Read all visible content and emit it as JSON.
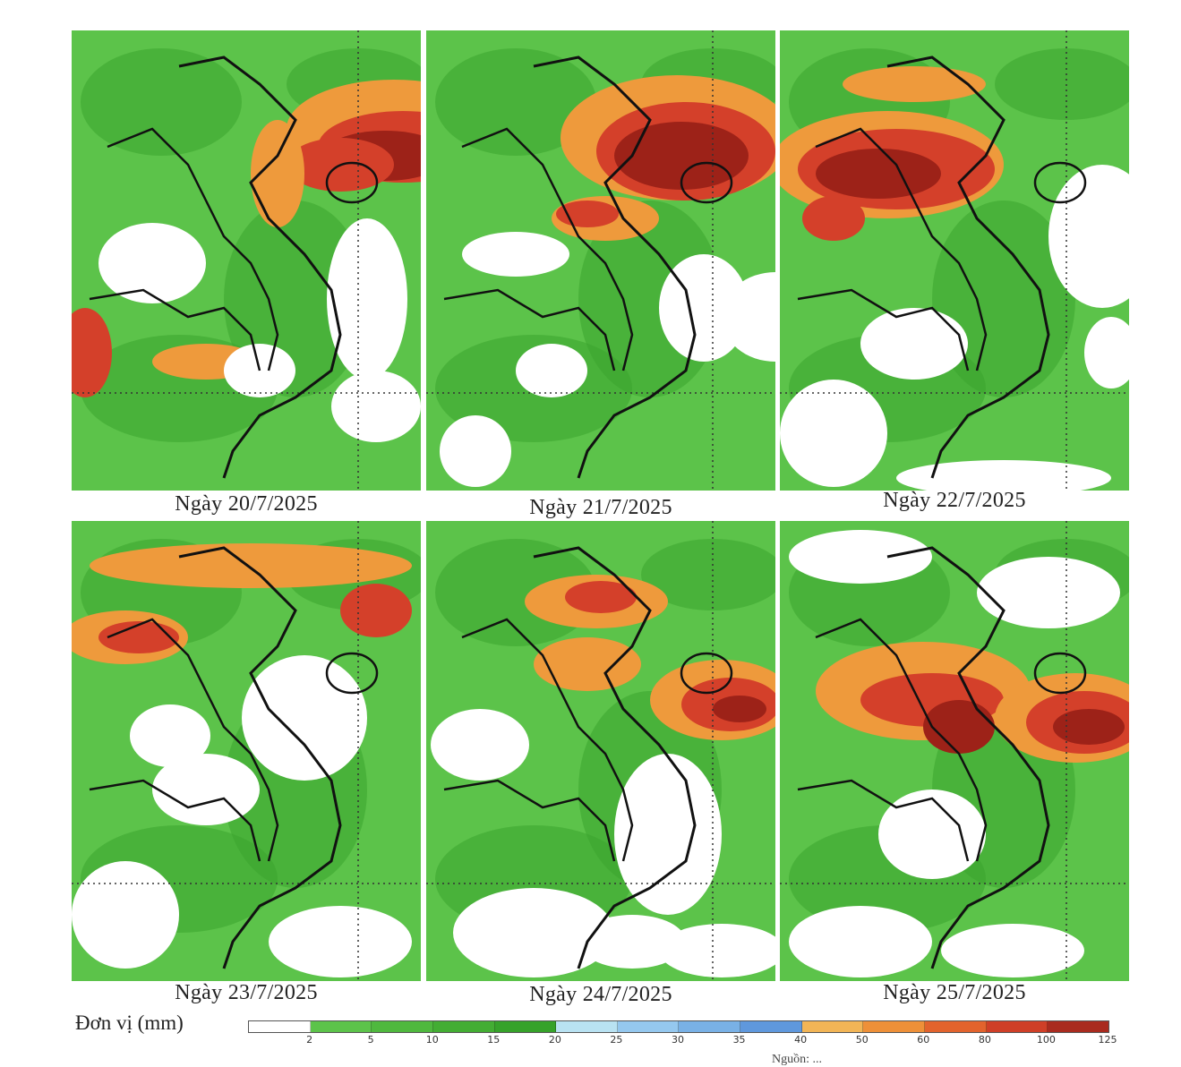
{
  "panels": [
    {
      "id": "p1",
      "date_label": "Ngày 20/7/2025"
    },
    {
      "id": "p2",
      "date_label": "Ngày 21/7/2025"
    },
    {
      "id": "p3",
      "date_label": "Ngày 22/7/2025"
    },
    {
      "id": "p4",
      "date_label": "Ngày 23/7/2025"
    },
    {
      "id": "p5",
      "date_label": "Ngày 24/7/2025"
    },
    {
      "id": "p6",
      "date_label": "Ngày 25/7/2025"
    }
  ],
  "legend": {
    "unit_label": "Đơn vị (mm)",
    "ticks": [
      "2",
      "5",
      "10",
      "15",
      "20",
      "25",
      "30",
      "35",
      "40",
      "50",
      "60",
      "80",
      "100",
      "125"
    ],
    "colors": [
      "#ffffff",
      "#5cc34a",
      "#4fb83e",
      "#43ad33",
      "#36a22a",
      "#b9e2f2",
      "#95c8ef",
      "#79b1e6",
      "#5f98dd",
      "#f2b556",
      "#ee9038",
      "#e2632d",
      "#cf3f27",
      "#a92b1f"
    ]
  },
  "colors": {
    "land_outline": "#111111",
    "grid_line": "#333333",
    "no_rain": "#ffffff"
  },
  "source_fragment": "Nguồn: ...",
  "icons": [
    "panel-map-icon"
  ]
}
